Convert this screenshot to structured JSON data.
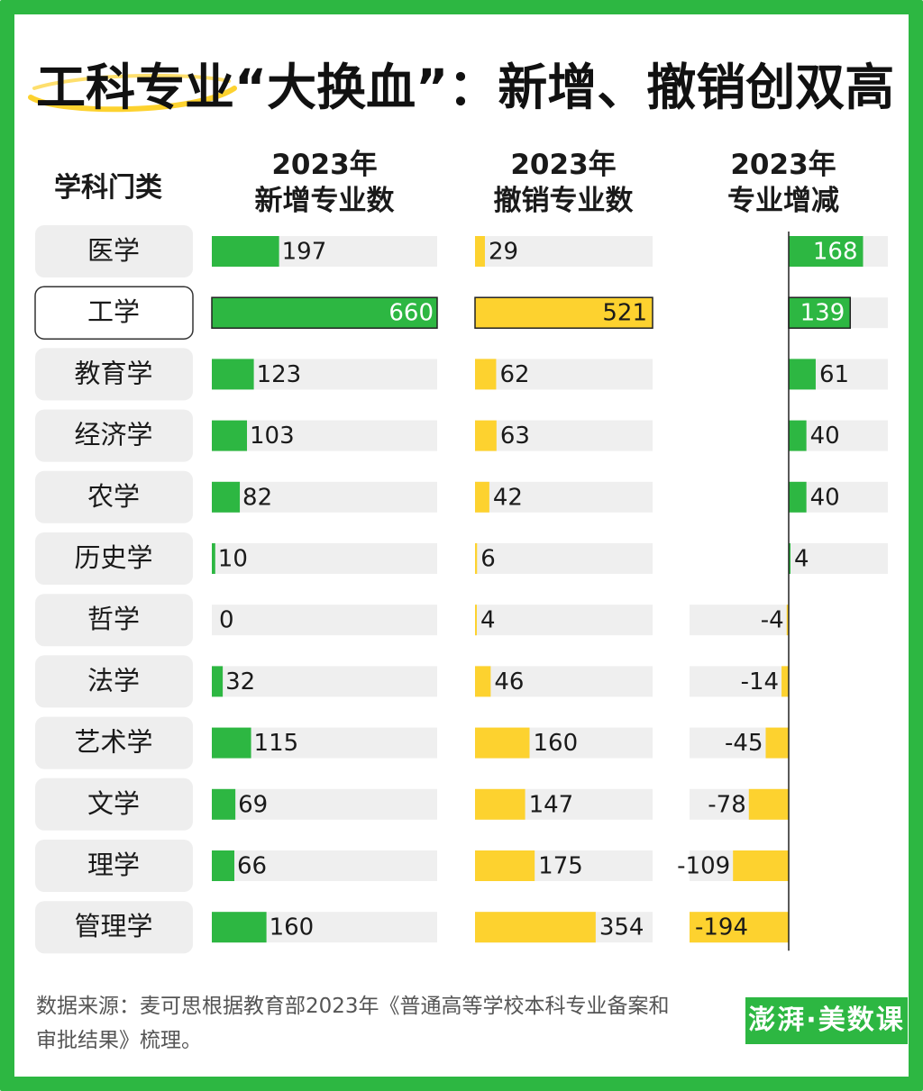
{
  "title": "工科专业“大换血”：新增、撤销创双高",
  "headers": {
    "category": "学科门类",
    "added": [
      "2023年",
      "新增专业数"
    ],
    "removed": [
      "2023年",
      "撤销专业数"
    ],
    "net": [
      "2023年",
      "专业增减"
    ]
  },
  "footnote": "数据来源：麦可思根据教育部2023年《普通高等学校本科专业备案和审批结果》梳理。",
  "logo": "澎湃·美数课",
  "colors": {
    "green": "#2db742",
    "yellow": "#fdd22f",
    "track": "#efefef",
    "pill": "#eeeeee",
    "highlight_border": "#333333"
  },
  "chart_data": {
    "type": "bar",
    "categories": [
      "医学",
      "工学",
      "教育学",
      "经济学",
      "农学",
      "历史学",
      "哲学",
      "法学",
      "艺术学",
      "文学",
      "理学",
      "管理学"
    ],
    "highlight": "工学",
    "series": [
      {
        "name": "2023年新增专业数",
        "values": [
          197,
          660,
          123,
          103,
          82,
          10,
          0,
          32,
          115,
          69,
          66,
          160
        ]
      },
      {
        "name": "2023年撤销专业数",
        "values": [
          29,
          521,
          62,
          63,
          42,
          6,
          4,
          46,
          160,
          147,
          175,
          354
        ]
      },
      {
        "name": "2023年专业增减",
        "values": [
          168,
          139,
          61,
          40,
          40,
          4,
          -4,
          -14,
          -45,
          -78,
          -109,
          -194
        ]
      }
    ]
  }
}
